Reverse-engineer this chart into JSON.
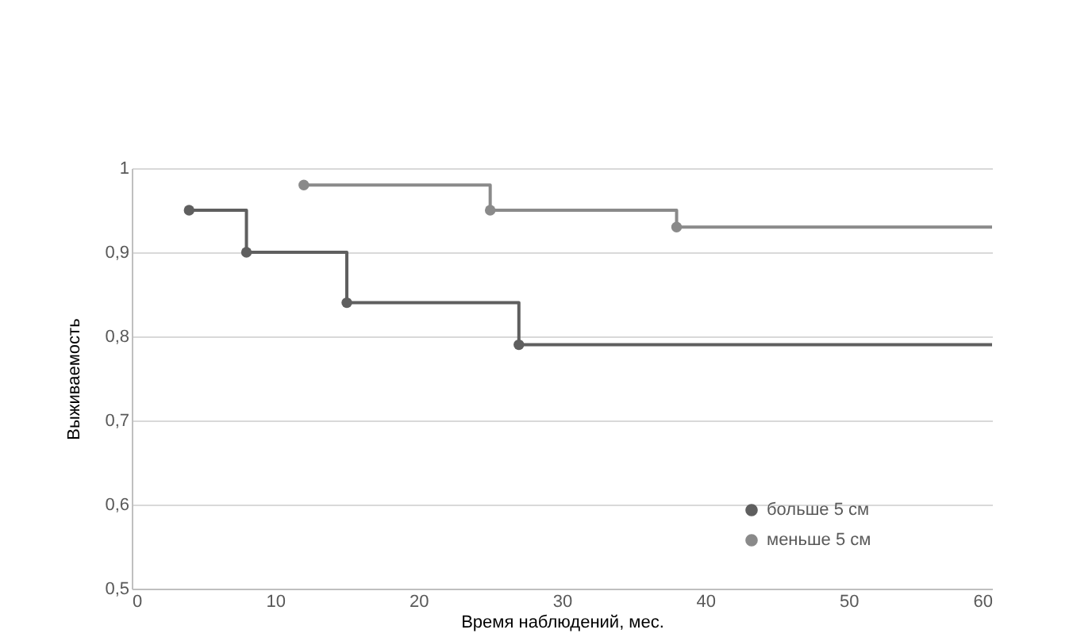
{
  "chart_data": {
    "type": "step",
    "xlabel": "Время наблюдений, мес.",
    "ylabel": "Выживаемость",
    "xlim": [
      0,
      60
    ],
    "xticks": [
      0,
      10,
      20,
      30,
      40,
      50,
      60
    ],
    "ylim": [
      0.5,
      1
    ],
    "yticks": [
      {
        "value": 0.5,
        "label": "0,5"
      },
      {
        "value": 0.6,
        "label": "0,6"
      },
      {
        "value": 0.7,
        "label": "0,7"
      },
      {
        "value": 0.8,
        "label": "0,8"
      },
      {
        "value": 0.9,
        "label": "0,9"
      },
      1
    ],
    "grid": "y",
    "legend": "bottom right",
    "marker": "circle",
    "line_style": "solid",
    "series": [
      {
        "name": "больше 5 см",
        "color": "#5f5f5f",
        "x": [
          4,
          8,
          15,
          27,
          60
        ],
        "values": [
          0.95,
          0.9,
          0.84,
          0.79,
          0.79
        ]
      },
      {
        "name": "меньше 5 см",
        "color": "#8a8a8a",
        "x": [
          12,
          25,
          38,
          60
        ],
        "values": [
          0.98,
          0.95,
          0.93,
          0.93
        ]
      }
    ]
  }
}
